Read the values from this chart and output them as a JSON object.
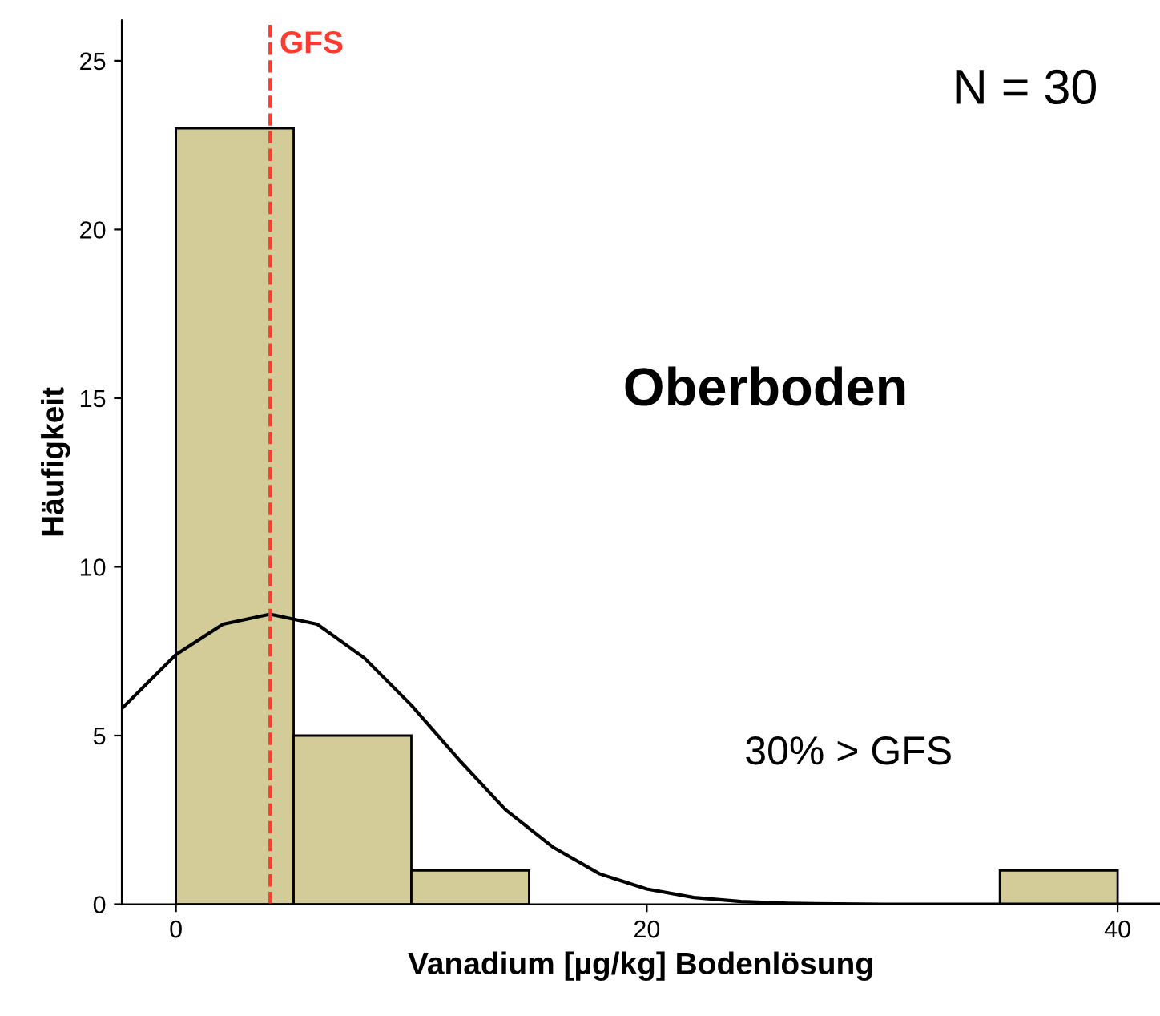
{
  "chart_data": {
    "type": "histogram",
    "xlabel": "Vanadium [µg/kg] Bodenlösung",
    "ylabel": "Häufigkeit",
    "bins": [
      0,
      5,
      10,
      15,
      20,
      25,
      30,
      35,
      40
    ],
    "values": [
      23,
      5,
      1,
      0,
      0,
      0,
      0,
      1
    ],
    "color": "#d4cc98",
    "series": [
      {
        "type": "line",
        "color": "#000000",
        "x": [
          -2.3,
          0,
          2,
          4,
          6,
          8,
          10,
          12,
          14,
          16,
          18,
          20,
          22,
          24,
          26,
          28,
          30,
          35,
          40,
          41.8
        ],
        "values": [
          5.8,
          7.4,
          8.3,
          8.6,
          8.3,
          7.3,
          5.9,
          4.3,
          2.8,
          1.7,
          0.9,
          0.45,
          0.2,
          0.08,
          0.03,
          0.01,
          0,
          0,
          0,
          0
        ]
      }
    ],
    "ref_lines": [
      {
        "axis": "x",
        "value": 4,
        "label": "GFS",
        "color": "#ff3b30",
        "line_style": "dashed"
      }
    ],
    "annotations": [
      "N = 30",
      "Oberboden",
      "30% > GFS"
    ],
    "xlim": [
      -2.3,
      41.8
    ],
    "ylim": [
      0,
      26.2
    ],
    "xticks": [
      0,
      20,
      40
    ],
    "yticks": [
      0,
      5,
      10,
      15,
      20,
      25
    ],
    "grid": false,
    "legend": false
  }
}
